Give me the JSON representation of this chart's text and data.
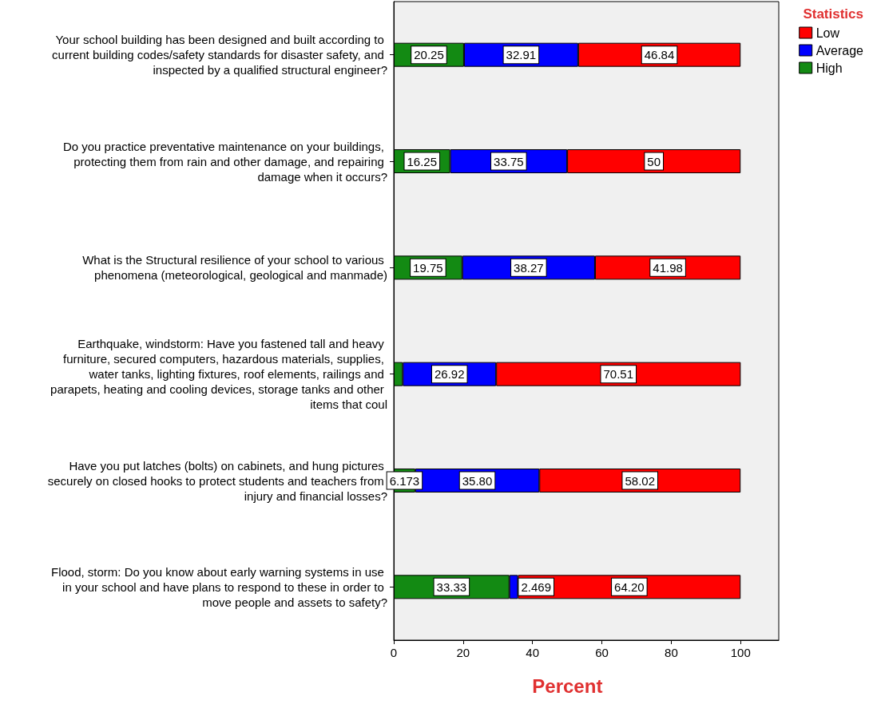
{
  "chart_data": {
    "type": "bar",
    "orientation": "horizontal",
    "stacked": true,
    "categories": [
      "Your school building has been designed and built according to current building codes/safety standards for disaster safety, and inspected by a qualified structural engineer?",
      "Do you practice preventative maintenance on your buildings, protecting them from rain and other damage, and repairing damage when it occurs?",
      "What is the Structural resilience of your school to various phenomena (meteorological, geological and manmade)",
      "Earthquake, windstorm: Have you fastened tall and heavy furniture, secured computers, hazardous materials, supplies, water tanks, lighting fixtures, roof elements, railings and parapets, heating and cooling devices, storage tanks and other items that coul",
      "Have you put latches (bolts) on cabinets, and hung pictures securely on closed hooks to protect students and teachers from injury and financial losses?",
      "Flood, storm: Do you know about early warning systems in use in your school and have plans to respond to these in order to move people and assets to safety?"
    ],
    "series": [
      {
        "name": "High",
        "color": "#138a13",
        "values": [
          20.25,
          16.25,
          19.75,
          2.6,
          6.173,
          33.33
        ],
        "value_labels": [
          "20.25",
          "16.25",
          "19.75",
          null,
          "6.173",
          "33.33"
        ]
      },
      {
        "name": "Average",
        "color": "#0000ff",
        "values": [
          32.91,
          33.75,
          38.27,
          26.92,
          35.8,
          2.469
        ],
        "value_labels": [
          "32.91",
          "33.75",
          "38.27",
          "26.92",
          "35.80",
          "2.469"
        ]
      },
      {
        "name": "Low",
        "color": "#ff0000",
        "values": [
          46.84,
          50,
          41.98,
          70.51,
          58.02,
          64.2
        ],
        "value_labels": [
          "46.84",
          "50",
          "41.98",
          "70.51",
          "58.02",
          "64.20"
        ]
      }
    ],
    "xlim": [
      0,
      111
    ],
    "xticks": [
      0,
      20,
      40,
      60,
      80,
      100
    ],
    "xlabel": "Percent",
    "legend_title": "Statistics",
    "legend": "top right",
    "grid": false
  }
}
